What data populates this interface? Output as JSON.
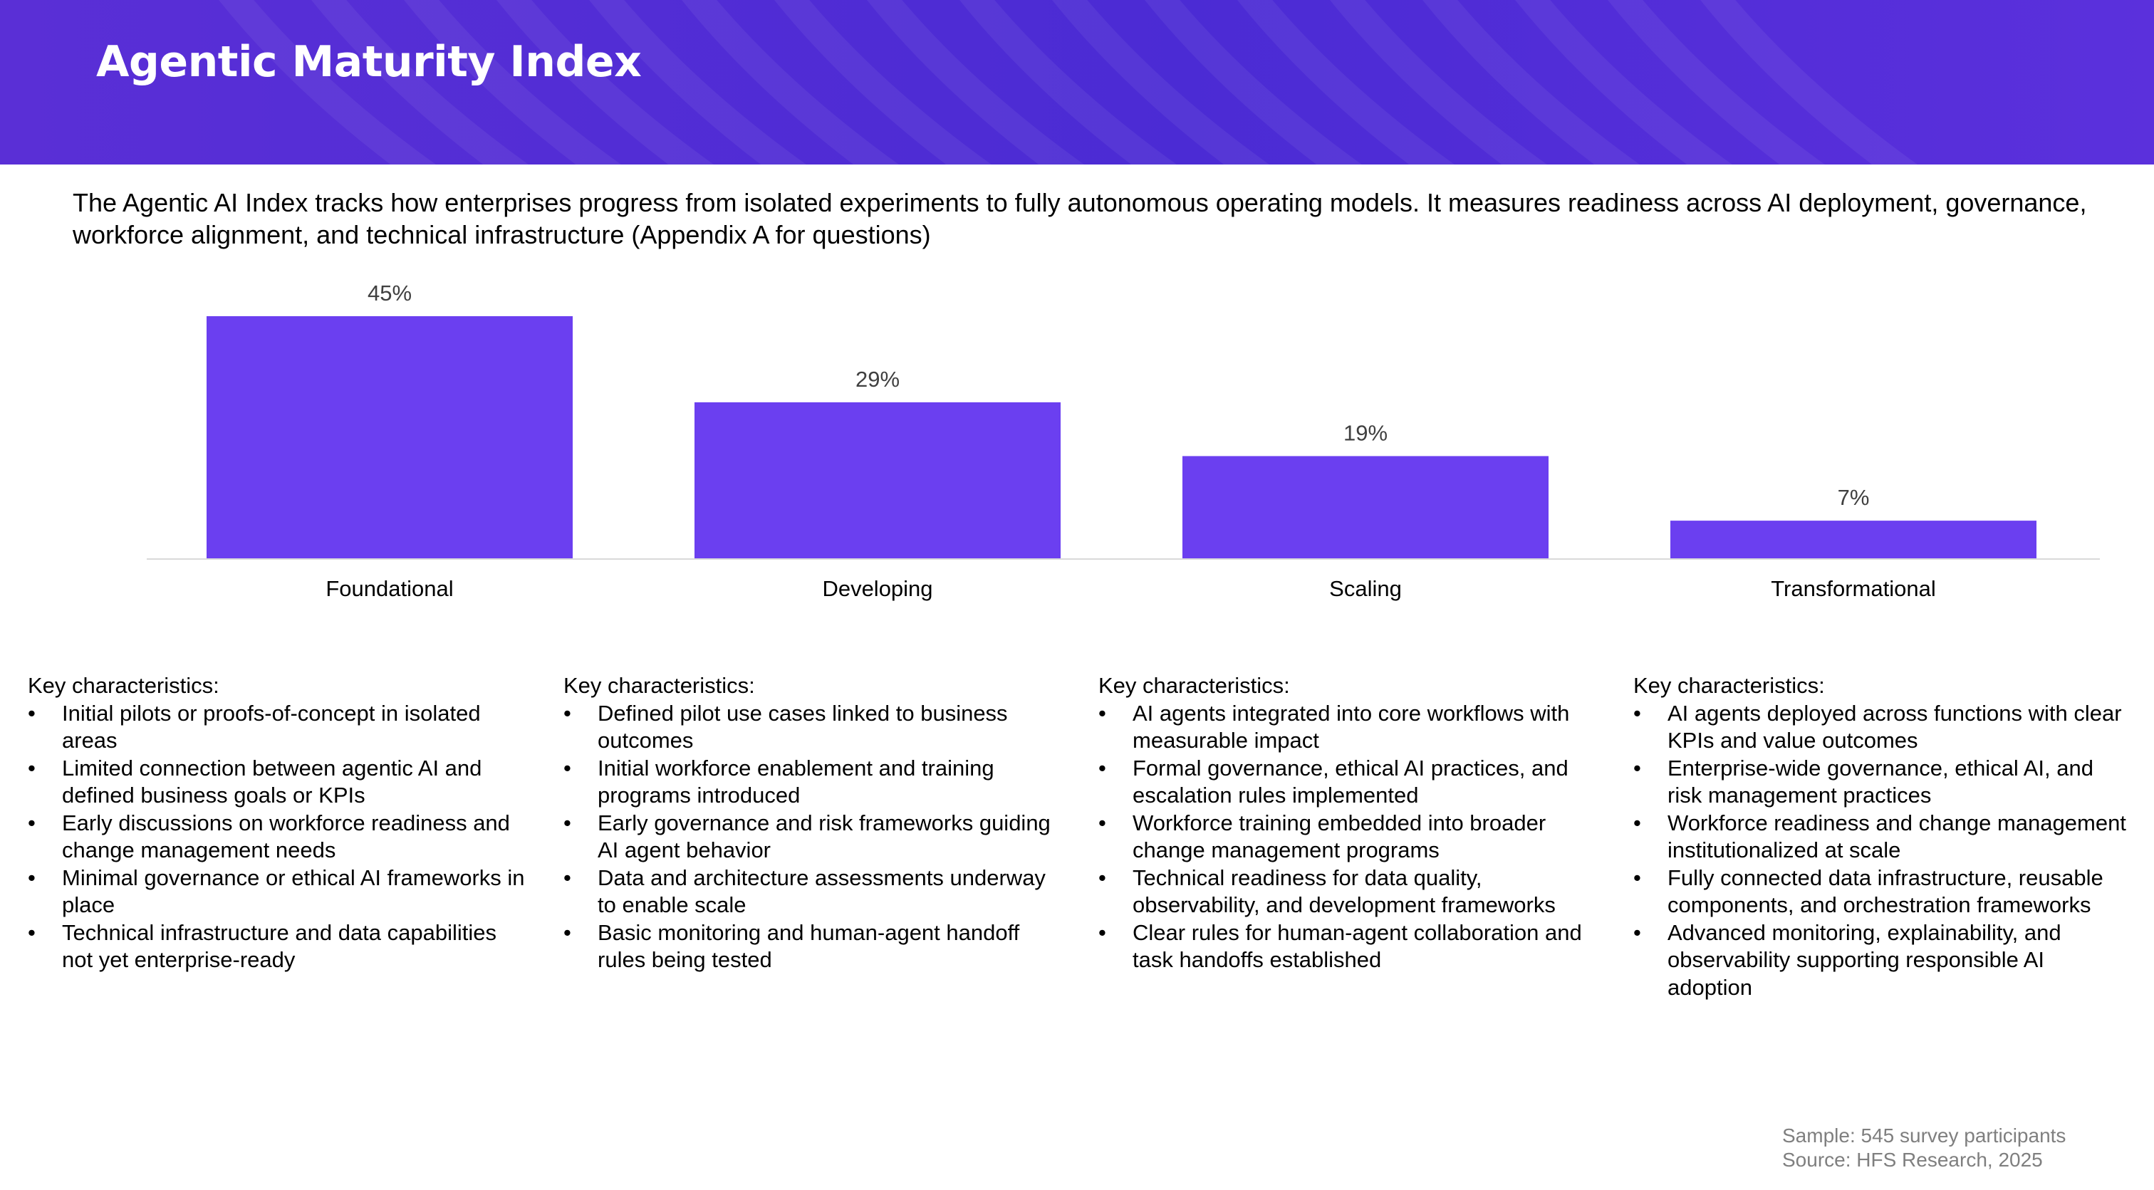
{
  "header": {
    "title": "Agentic Maturity Index",
    "background_color": "#4f2cd6"
  },
  "intro": {
    "text": "The Agentic AI Index tracks how enterprises progress from isolated experiments to fully autonomous operating models. It measures readiness across AI deployment, governance, workforce alignment, and technical infrastructure (Appendix A for questions)"
  },
  "chart_data": {
    "type": "bar",
    "categories": [
      "Foundational",
      "Developing",
      "Scaling",
      "Transformational"
    ],
    "values": [
      45,
      29,
      19,
      7
    ],
    "data_labels": [
      "45%",
      "29%",
      "19%",
      "7%"
    ],
    "ylim": [
      0,
      45
    ],
    "grid": false,
    "bar_color": "#6b3ff0"
  },
  "characteristics": [
    {
      "heading": "Key characteristics:",
      "bullet": "•",
      "items": [
        "Initial pilots or proofs-of-concept in isolated areas",
        "Limited connection between agentic AI and defined business goals or KPIs",
        "Early discussions on workforce readiness and change management needs",
        "Minimal governance or ethical AI frameworks in place",
        "Technical infrastructure and data capabilities not yet enterprise-ready"
      ]
    },
    {
      "heading": "Key characteristics:",
      "bullet": "•",
      "items": [
        "Defined pilot use cases linked to business outcomes",
        "Initial workforce enablement and training programs introduced",
        "Early governance and risk frameworks guiding AI agent behavior",
        "Data and architecture assessments underway to enable scale",
        "Basic monitoring and human-agent handoff rules being tested"
      ]
    },
    {
      "heading": "Key characteristics:",
      "bullet": "•",
      "items": [
        "AI agents integrated into core workflows with measurable impact",
        "Formal governance, ethical AI practices, and escalation rules implemented",
        "Workforce training embedded into broader change management programs",
        "Technical readiness for data quality, observability, and development frameworks",
        "Clear rules for human-agent collaboration and task handoffs established"
      ]
    },
    {
      "heading": "Key characteristics:",
      "bullet": "•",
      "items": [
        "AI agents deployed across functions with clear KPIs and value outcomes",
        "Enterprise-wide governance, ethical AI, and risk management practices",
        "Workforce readiness and change management institutionalized at scale",
        "Fully connected data infrastructure, reusable components, and orchestration frameworks",
        "Advanced monitoring, explainability, and observability supporting responsible AI adoption"
      ]
    }
  ],
  "footer": {
    "sample": "Sample: 545 survey participants",
    "source": "Source: HFS Research, 2025"
  }
}
